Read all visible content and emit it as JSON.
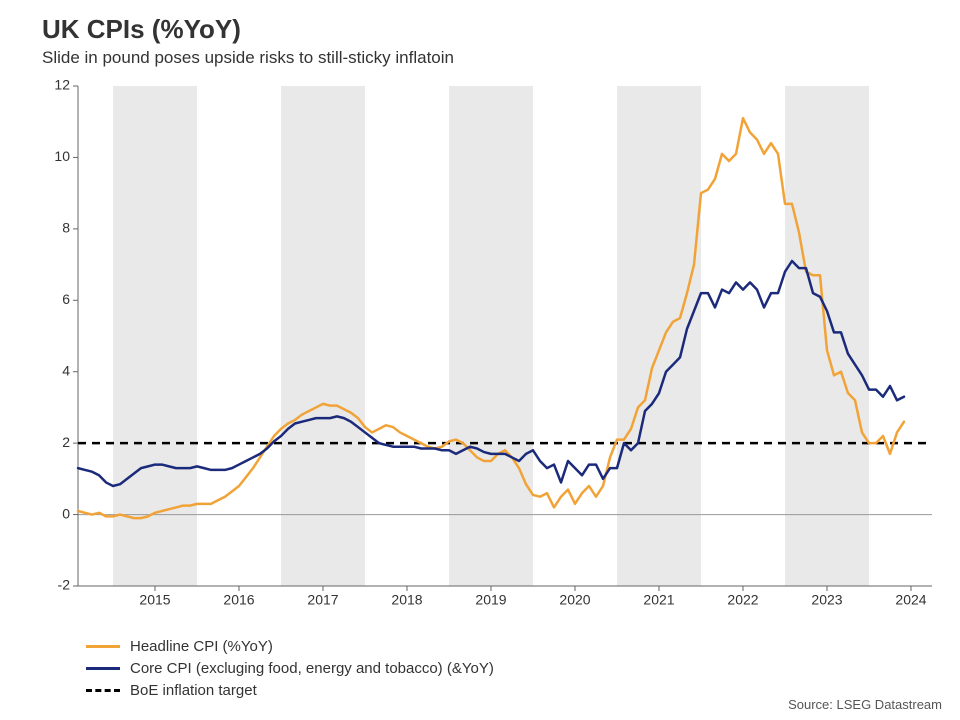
{
  "title": "UK CPIs (%YoY)",
  "subtitle": "Slide in pound poses upside risks to still-sticky inflatoin",
  "source_label": "Source: LSEG Datastream",
  "chart": {
    "type": "line",
    "background_color": "#ffffff",
    "band_color": "#e9e9e9",
    "axis_color": "#666666",
    "zero_line_color": "#999999",
    "tick_label_fontsize": 14,
    "title_fontsize": 26,
    "subtitle_fontsize": 17,
    "x": {
      "start_year": 2014,
      "start_month_index": 7,
      "end_year": 2024,
      "end_month_index": 9,
      "tick_years": [
        2015,
        2016,
        2017,
        2018,
        2019,
        2020,
        2021,
        2022,
        2023,
        2024
      ]
    },
    "y": {
      "min": -2,
      "max": 12,
      "tick_step": 2
    },
    "target_line": {
      "value": 2,
      "color": "#000000",
      "dash": "8,6",
      "width": 2.5,
      "label": "BoE inflation target"
    },
    "series": [
      {
        "id": "headline",
        "label": "Headline CPI (%YoY)",
        "color": "#f2a337",
        "width": 2.5,
        "values": [
          0.1,
          0.05,
          0.0,
          0.05,
          -0.05,
          -0.05,
          0.0,
          -0.05,
          -0.1,
          -0.1,
          -0.05,
          0.05,
          0.1,
          0.15,
          0.2,
          0.25,
          0.25,
          0.3,
          0.3,
          0.3,
          0.4,
          0.5,
          0.65,
          0.8,
          1.05,
          1.3,
          1.6,
          1.9,
          2.2,
          2.4,
          2.55,
          2.65,
          2.8,
          2.9,
          3.0,
          3.1,
          3.05,
          3.05,
          2.95,
          2.85,
          2.7,
          2.45,
          2.3,
          2.4,
          2.5,
          2.45,
          2.3,
          2.2,
          2.1,
          2.0,
          1.9,
          1.85,
          1.9,
          2.05,
          2.1,
          2.0,
          1.8,
          1.6,
          1.5,
          1.5,
          1.7,
          1.8,
          1.6,
          1.3,
          0.85,
          0.55,
          0.5,
          0.6,
          0.2,
          0.5,
          0.7,
          0.3,
          0.6,
          0.8,
          0.5,
          0.8,
          1.6,
          2.1,
          2.1,
          2.4,
          3.0,
          3.2,
          4.1,
          4.6,
          5.1,
          5.4,
          5.5,
          6.2,
          7.0,
          9.0,
          9.1,
          9.4,
          10.1,
          9.9,
          10.1,
          11.1,
          10.7,
          10.5,
          10.1,
          10.4,
          10.1,
          8.7,
          8.7,
          7.9,
          6.8,
          6.7,
          6.7,
          4.6,
          3.9,
          4.0,
          3.4,
          3.2,
          2.3,
          2.0,
          2.0,
          2.2,
          1.7,
          2.3,
          2.6
        ]
      },
      {
        "id": "core",
        "label": "Core CPI (excluging food, energy and tobacco) (&YoY)",
        "color": "#1b2a7a",
        "width": 2.5,
        "values": [
          1.3,
          1.25,
          1.2,
          1.1,
          0.9,
          0.8,
          0.85,
          1.0,
          1.15,
          1.3,
          1.35,
          1.4,
          1.4,
          1.35,
          1.3,
          1.3,
          1.3,
          1.35,
          1.3,
          1.25,
          1.25,
          1.25,
          1.3,
          1.4,
          1.5,
          1.6,
          1.7,
          1.85,
          2.05,
          2.2,
          2.4,
          2.55,
          2.6,
          2.65,
          2.7,
          2.7,
          2.7,
          2.75,
          2.7,
          2.6,
          2.45,
          2.3,
          2.15,
          2.0,
          1.95,
          1.9,
          1.9,
          1.9,
          1.9,
          1.85,
          1.85,
          1.85,
          1.8,
          1.8,
          1.7,
          1.8,
          1.9,
          1.85,
          1.75,
          1.7,
          1.7,
          1.7,
          1.6,
          1.5,
          1.7,
          1.8,
          1.5,
          1.3,
          1.4,
          0.9,
          1.5,
          1.3,
          1.1,
          1.4,
          1.4,
          1.0,
          1.3,
          1.3,
          2.0,
          1.8,
          2.0,
          2.9,
          3.1,
          3.4,
          4.0,
          4.2,
          4.4,
          5.2,
          5.7,
          6.2,
          6.2,
          5.8,
          6.3,
          6.2,
          6.5,
          6.3,
          6.5,
          6.3,
          5.8,
          6.2,
          6.2,
          6.8,
          7.1,
          6.9,
          6.9,
          6.2,
          6.1,
          5.7,
          5.1,
          5.1,
          4.5,
          4.2,
          3.9,
          3.5,
          3.5,
          3.3,
          3.6,
          3.2,
          3.3
        ]
      }
    ]
  },
  "legend": {
    "items": [
      {
        "ref": "headline"
      },
      {
        "ref": "core"
      },
      {
        "ref": "target"
      }
    ]
  }
}
